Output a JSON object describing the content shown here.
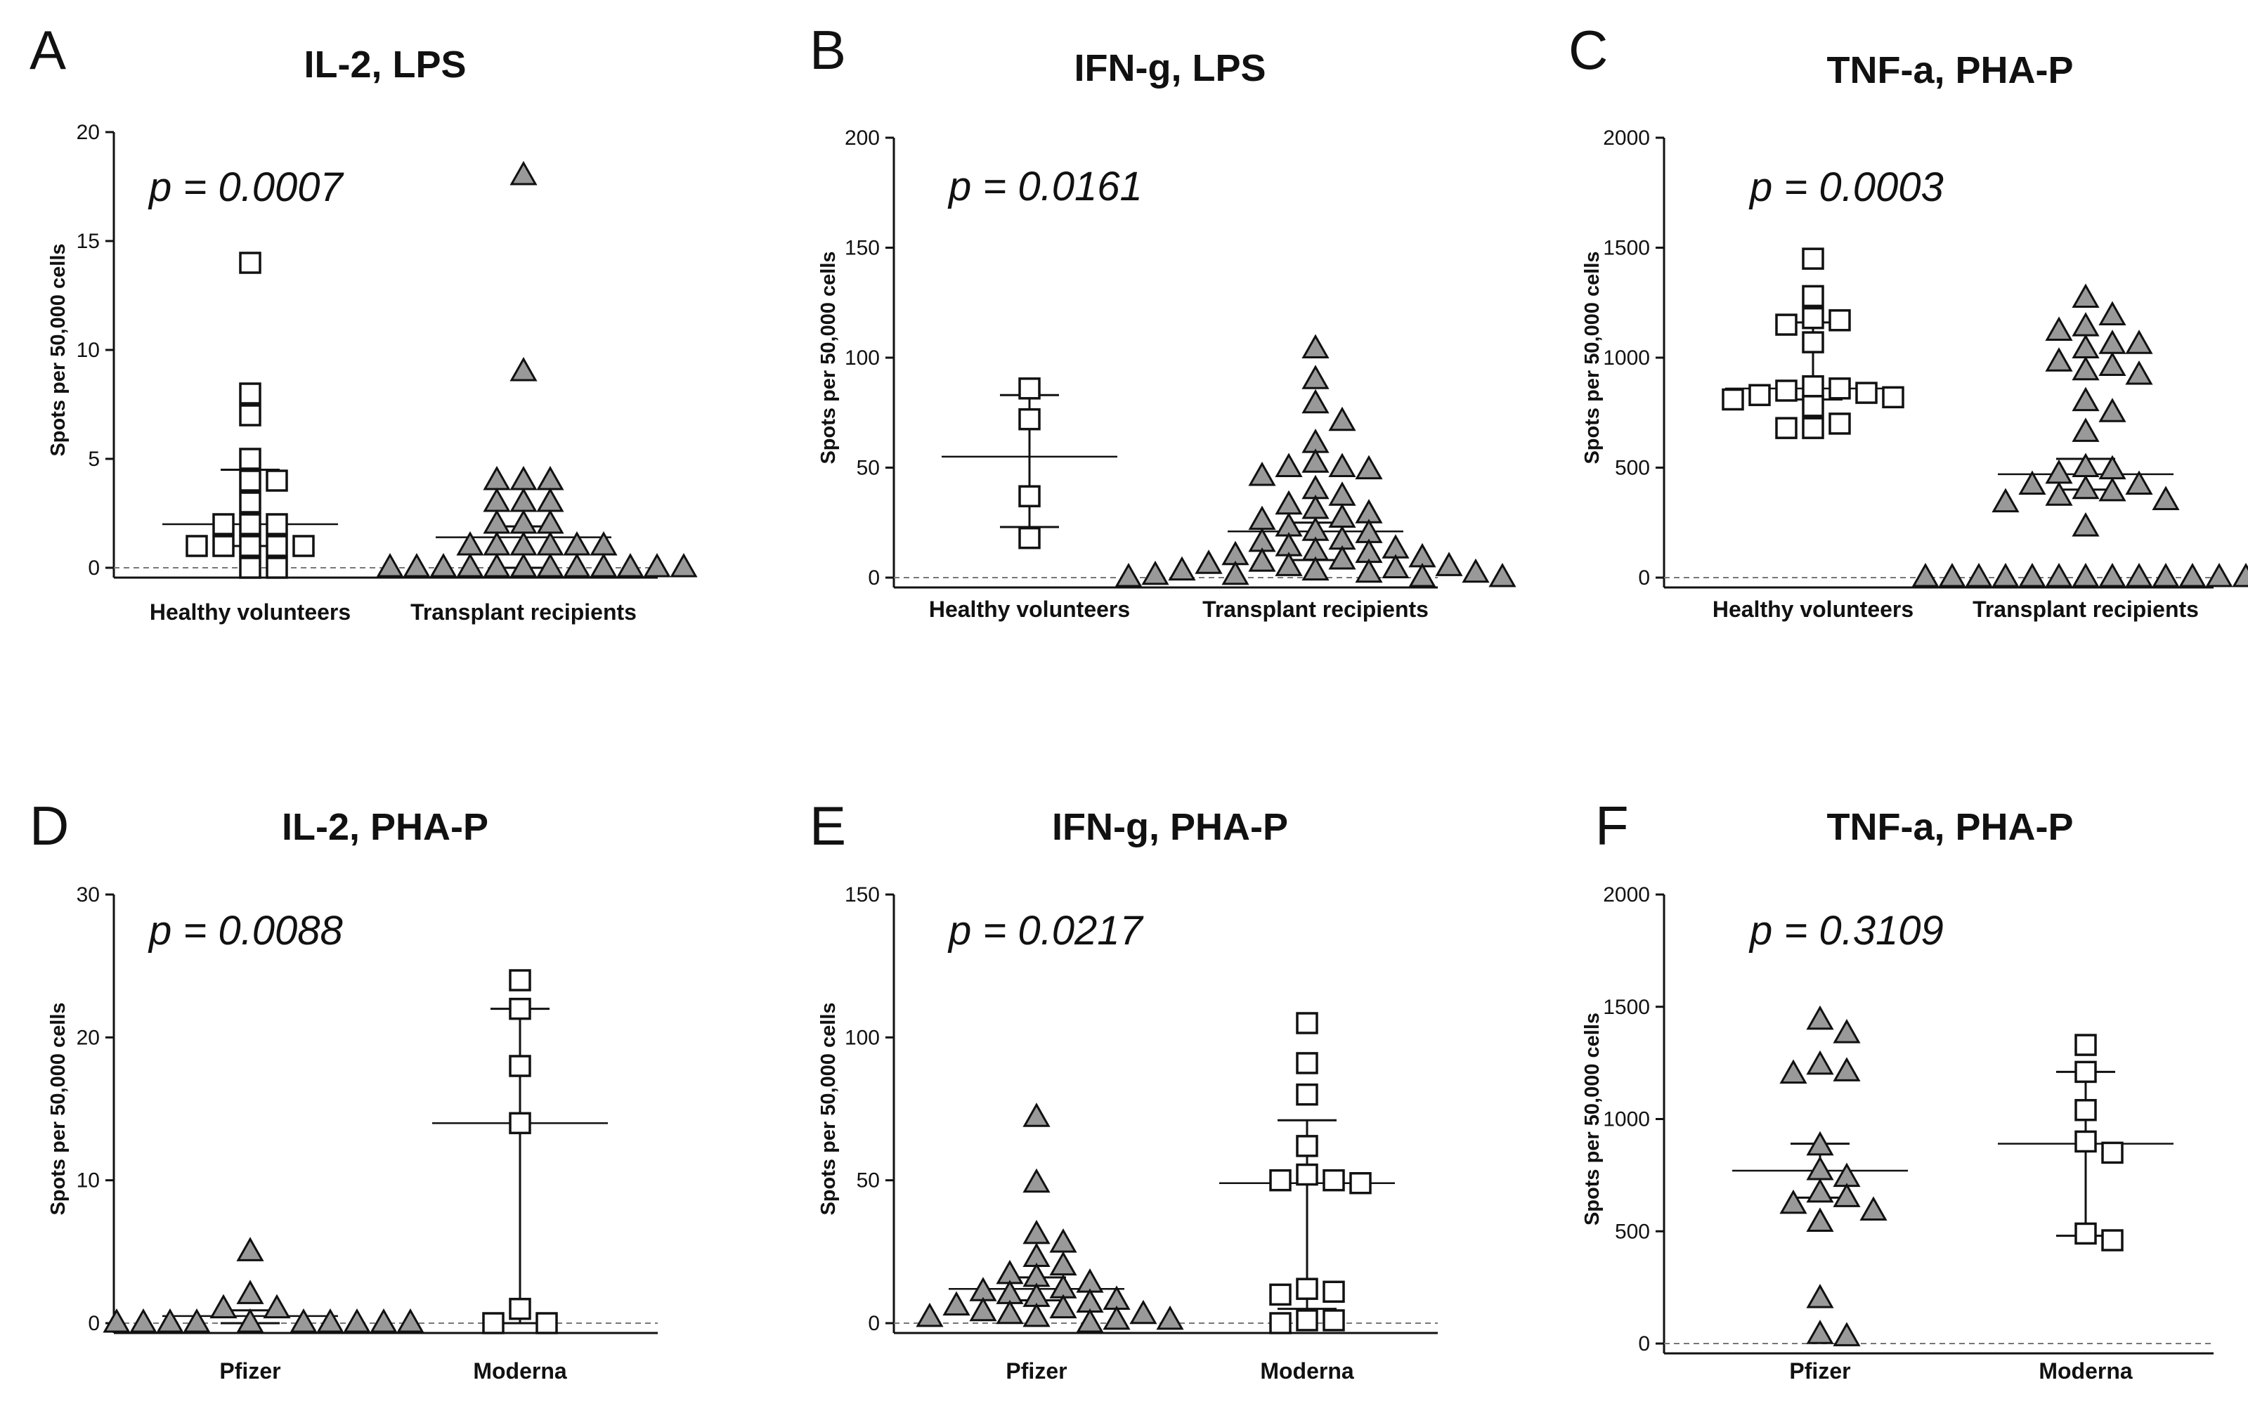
{
  "chart_data": [
    {
      "panel": "A",
      "type": "scatter",
      "title": "IL-2, LPS",
      "p_value": "p = 0.0007",
      "ylabel": "Spots per 50,000 cells",
      "ylim": [
        0,
        20
      ],
      "yticks": [
        0,
        5,
        10,
        15,
        20
      ],
      "categories": [
        "Healthy volunteers",
        "Transplant recipients"
      ],
      "series": [
        {
          "marker": "square",
          "color": "#ffffff",
          "values": [
            14,
            8,
            7,
            5,
            4,
            4,
            3,
            2,
            2,
            2,
            1,
            1,
            1,
            1,
            1,
            0,
            0
          ],
          "median": 2,
          "iqr": [
            1,
            4.5
          ],
          "offsets": [
            0,
            -0.7,
            0.7,
            -1.4,
            0,
            1.4,
            -2.1,
            -0.7,
            0.7,
            2.1,
            -2.8,
            -1.4,
            0,
            1.4,
            2.8,
            -0.7,
            0.7
          ]
        },
        {
          "marker": "triangle",
          "color": "#999999",
          "values": [
            18,
            9,
            4,
            4,
            4,
            3,
            3,
            3,
            2,
            2,
            2,
            1,
            1,
            1,
            1,
            1,
            1,
            0,
            0,
            0,
            0,
            0,
            0,
            0,
            0,
            0,
            0,
            0,
            0
          ],
          "median": 1.4,
          "iqr": [
            0,
            1.9
          ]
        }
      ]
    },
    {
      "panel": "B",
      "type": "scatter",
      "title": "IFN-g, LPS",
      "p_value": "p = 0.0161",
      "ylabel": "Spots per 50,000 cells",
      "ylim": [
        0,
        200
      ],
      "yticks": [
        0,
        50,
        100,
        150,
        200
      ],
      "categories": [
        "Healthy volunteers",
        "Transplant recipients"
      ],
      "series": [
        {
          "marker": "square",
          "color": "#ffffff",
          "values": [
            86,
            72,
            37,
            18
          ],
          "median": 55,
          "iqr": [
            23,
            83
          ]
        },
        {
          "marker": "triangle",
          "color": "#999999",
          "values": [
            104,
            90,
            79,
            71,
            61,
            52,
            50,
            50,
            49,
            46,
            40,
            37,
            33,
            31,
            29,
            27,
            26,
            23,
            21,
            20,
            17,
            16,
            14,
            13,
            12,
            11,
            10,
            9,
            8,
            7,
            6,
            5,
            5,
            4,
            3,
            3,
            2,
            2,
            1,
            1,
            0,
            0,
            0
          ],
          "median": 21,
          "iqr": [
            8,
            25
          ]
        }
      ]
    },
    {
      "panel": "C",
      "type": "scatter",
      "title": "TNF-a, PHA-P",
      "p_value": "p = 0.0003",
      "ylabel": "Spots per 50,000 cells",
      "ylim": [
        0,
        2000
      ],
      "yticks": [
        0,
        500,
        1000,
        1500,
        2000
      ],
      "categories": [
        "Healthy volunteers",
        "Transplant recipients"
      ],
      "series": [
        {
          "marker": "square",
          "color": "#ffffff",
          "values": [
            1450,
            1280,
            1180,
            1170,
            1150,
            1070,
            870,
            860,
            850,
            840,
            830,
            820,
            810,
            780,
            700,
            680,
            680
          ],
          "median": 860,
          "iqr": [
            810,
            1160
          ]
        },
        {
          "marker": "triangle",
          "color": "#999999",
          "values": [
            1270,
            1190,
            1140,
            1120,
            1060,
            1060,
            1040,
            980,
            960,
            940,
            920,
            800,
            750,
            660,
            500,
            490,
            470,
            420,
            420,
            400,
            390,
            370,
            350,
            340,
            230,
            0,
            0,
            0,
            0,
            0,
            0,
            0,
            0,
            0,
            0,
            0,
            0,
            0,
            0
          ],
          "median": 470,
          "iqr": [
            400,
            540
          ]
        }
      ]
    },
    {
      "panel": "D",
      "type": "scatter",
      "title": "IL-2, PHA-P",
      "p_value": "p = 0.0088",
      "ylabel": "Spots per 50,000 cells",
      "ylim": [
        0,
        30
      ],
      "yticks": [
        0,
        10,
        20,
        30
      ],
      "categories": [
        "Pfizer",
        "Moderna"
      ],
      "series": [
        {
          "marker": "triangle",
          "color": "#999999",
          "values": [
            5,
            2,
            1,
            1,
            0,
            0,
            0,
            0,
            0,
            0,
            0,
            0,
            0,
            0
          ],
          "median": 0.5,
          "iqr": [
            0,
            0.9
          ]
        },
        {
          "marker": "square",
          "color": "#ffffff",
          "values": [
            24,
            22,
            18,
            14,
            1,
            0,
            0
          ],
          "median": 14,
          "iqr": [
            0,
            22
          ]
        }
      ]
    },
    {
      "panel": "E",
      "type": "scatter",
      "title": "IFN-g, PHA-P",
      "p_value": "p = 0.0217",
      "ylabel": "Spots per 50,000 cells",
      "ylim": [
        0,
        150
      ],
      "yticks": [
        0,
        50,
        100,
        150
      ],
      "categories": [
        "Pfizer",
        "Moderna"
      ],
      "series": [
        {
          "marker": "triangle",
          "color": "#999999",
          "values": [
            72,
            49,
            31,
            28,
            23,
            20,
            17,
            16,
            14,
            12,
            11,
            10,
            9,
            8,
            7,
            6,
            5,
            4,
            3,
            3,
            2,
            2,
            1,
            1,
            0
          ],
          "median": 12,
          "iqr": [
            8,
            16
          ]
        },
        {
          "marker": "square",
          "color": "#ffffff",
          "values": [
            105,
            91,
            80,
            62,
            52,
            50,
            50,
            49,
            12,
            11,
            10,
            1,
            1,
            0
          ],
          "median": 49,
          "iqr": [
            5,
            71
          ]
        }
      ]
    },
    {
      "panel": "F",
      "type": "scatter",
      "title": "TNF-a, PHA-P",
      "p_value": "p = 0.3109",
      "ylabel": "Spots per 50,000 cells",
      "ylim": [
        0,
        2000
      ],
      "yticks": [
        0,
        500,
        1000,
        1500,
        2000
      ],
      "categories": [
        "Pfizer",
        "Moderna"
      ],
      "series": [
        {
          "marker": "triangle",
          "color": "#999999",
          "values": [
            1440,
            1380,
            1240,
            1210,
            1200,
            880,
            770,
            740,
            670,
            650,
            620,
            590,
            540,
            200,
            40,
            30
          ],
          "median": 770,
          "iqr": [
            650,
            890
          ]
        },
        {
          "marker": "square",
          "color": "#ffffff",
          "values": [
            1330,
            1210,
            1040,
            900,
            850,
            490,
            460
          ],
          "median": 890,
          "iqr": [
            480,
            1210
          ]
        }
      ]
    }
  ]
}
